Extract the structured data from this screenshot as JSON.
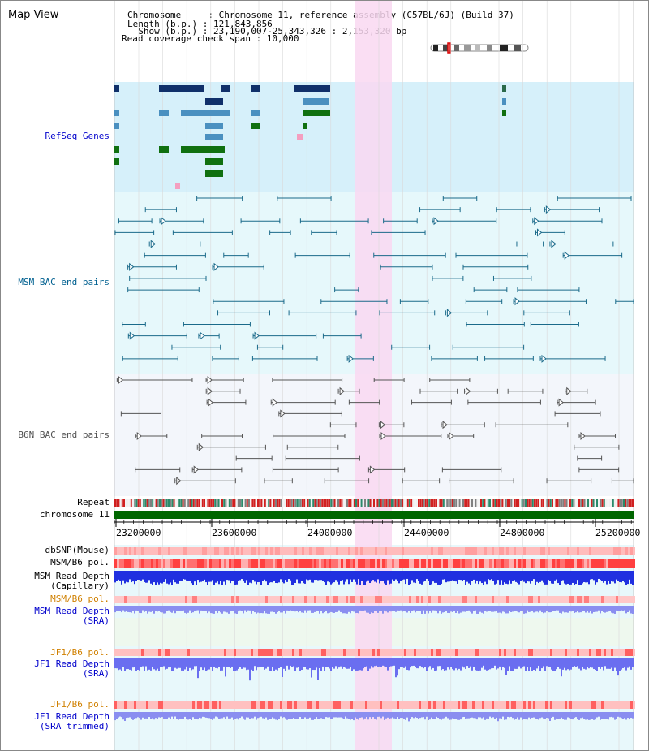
{
  "title": "Map View",
  "info": {
    "line1": "Chromosome     : Chromosome 11, reference assembly (C57BL/6J) (Build 37)",
    "line2": "Length (b.p.) : 121,843,856",
    "line3": "  Show (b.p.) : 23,190,007-25,343,326 : 2,153,320 bp",
    "line4": "Read coverage check span : 10,000"
  },
  "tracks": {
    "refseq": "RefSeq Genes",
    "msm_bac": "MSM BAC end pairs",
    "b6n_bac": "B6N BAC end pairs",
    "repeat": "Repeat",
    "chromosome": "chromosome 11",
    "dbsnp": "dbSNP(Mouse)",
    "msm_b6_pol": "MSM/B6 pol.",
    "msm_depth_cap_1": "MSM Read Depth",
    "msm_depth_cap_2": "(Capillary)",
    "msm_b6_pol2": "MSM/B6 pol.",
    "msm_depth_sra_1": "MSM Read Depth",
    "msm_depth_sra_2": "(SRA)",
    "jf1_b6_pol": "JF1/B6 pol.",
    "jf1_depth_sra_1": "JF1 Read Depth",
    "jf1_depth_sra_2": "(SRA)",
    "jf1_b6_pol2": "JF1/B6 pol.",
    "jf1_depth_trim_1": "JF1 Read Depth",
    "jf1_depth_trim_2": "(SRA trimmed)"
  },
  "axis": {
    "ticks": [
      "23200000",
      "23600000",
      "24000000",
      "24400000",
      "24800000",
      "25200000"
    ]
  },
  "colors": {
    "refseq_bg": "#d6f0fa",
    "msm_bg": "#e6f8fb",
    "b6n_bg": "#f3f6fb",
    "highlight": "#f9d8f1",
    "label_blue": "#0000cc",
    "label_teal": "#006090",
    "label_orange": "#d08000",
    "label_gray": "#505050",
    "chromosome_green": "#006600"
  }
}
